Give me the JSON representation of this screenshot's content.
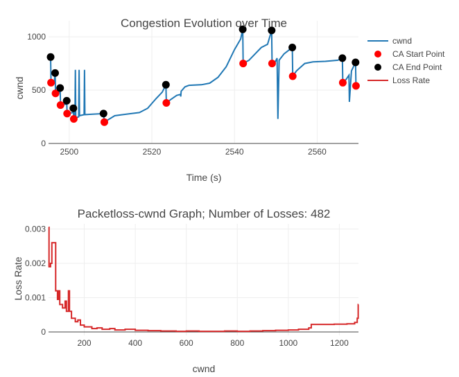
{
  "colors": {
    "cwnd": "#1f77b4",
    "ca_start": "#ff0000",
    "ca_end": "#000000",
    "loss": "#d62728"
  },
  "chart_data": [
    {
      "type": "line",
      "title": "Congestion Evolution over Time",
      "xlabel": "Time (s)",
      "ylabel": "cwnd",
      "xlim": [
        2495,
        2570
      ],
      "ylim": [
        0,
        1150
      ],
      "xticks": [
        2500,
        2520,
        2540,
        2560
      ],
      "yticks": [
        0,
        500,
        1000
      ],
      "legend_position": "top-right",
      "legend": [
        "cwnd",
        "CA Start Point",
        "CA End Point",
        "Loss Rate"
      ],
      "series": [
        {
          "name": "cwnd",
          "kind": "line",
          "points": [
            [
              2495.5,
              810
            ],
            [
              2495.6,
              570
            ],
            [
              2496.4,
              575
            ],
            [
              2496.6,
              660
            ],
            [
              2496.7,
              470
            ],
            [
              2497.7,
              480
            ],
            [
              2497.8,
              520
            ],
            [
              2497.9,
              360
            ],
            [
              2499.3,
              370
            ],
            [
              2499.4,
              400
            ],
            [
              2499.5,
              280
            ],
            [
              2500.9,
              290
            ],
            [
              2501.0,
              330
            ],
            [
              2501.1,
              230
            ],
            [
              2501.4,
              240
            ],
            [
              2501.5,
              690
            ],
            [
              2501.6,
              240
            ],
            [
              2502.3,
              250
            ],
            [
              2502.4,
              690
            ],
            [
              2502.5,
              260
            ],
            [
              2503.6,
              270
            ],
            [
              2503.7,
              690
            ],
            [
              2503.8,
              270
            ],
            [
              2508.3,
              280
            ],
            [
              2508.5,
              200
            ],
            [
              2511,
              260
            ],
            [
              2513,
              270
            ],
            [
              2515,
              280
            ],
            [
              2517,
              290
            ],
            [
              2519,
              330
            ],
            [
              2521,
              420
            ],
            [
              2522.5,
              480
            ],
            [
              2523.4,
              550
            ],
            [
              2523.5,
              380
            ],
            [
              2524.5,
              410
            ],
            [
              2526,
              450
            ],
            [
              2526.9,
              460
            ],
            [
              2527,
              440
            ],
            [
              2527.1,
              490
            ],
            [
              2528,
              530
            ],
            [
              2529,
              545
            ],
            [
              2532,
              550
            ],
            [
              2534,
              565
            ],
            [
              2536,
              620
            ],
            [
              2538,
              720
            ],
            [
              2540,
              880
            ],
            [
              2541.5,
              980
            ],
            [
              2542,
              1070
            ],
            [
              2542.1,
              750
            ],
            [
              2543.5,
              780
            ],
            [
              2545,
              840
            ],
            [
              2546.5,
              900
            ],
            [
              2548,
              930
            ],
            [
              2549,
              1060
            ],
            [
              2549.1,
              750
            ],
            [
              2549.8,
              760
            ],
            [
              2550.3,
              800
            ],
            [
              2550.5,
              230
            ],
            [
              2550.8,
              780
            ],
            [
              2552,
              840
            ],
            [
              2553,
              870
            ],
            [
              2554,
              900
            ],
            [
              2554.1,
              630
            ],
            [
              2555,
              680
            ],
            [
              2557,
              750
            ],
            [
              2559,
              765
            ],
            [
              2562,
              770
            ],
            [
              2565,
              780
            ],
            [
              2566.1,
              800
            ],
            [
              2566.2,
              570
            ],
            [
              2567,
              600
            ],
            [
              2567.7,
              640
            ],
            [
              2567.8,
              390
            ],
            [
              2568.3,
              680
            ],
            [
              2569.3,
              760
            ],
            [
              2569.4,
              540
            ],
            [
              2570,
              560
            ]
          ]
        },
        {
          "name": "CA Start Point",
          "kind": "markers",
          "points": [
            [
              2495.6,
              570
            ],
            [
              2496.7,
              470
            ],
            [
              2497.9,
              360
            ],
            [
              2499.5,
              280
            ],
            [
              2501.1,
              230
            ],
            [
              2508.5,
              200
            ],
            [
              2523.5,
              380
            ],
            [
              2542.1,
              750
            ],
            [
              2549.1,
              750
            ],
            [
              2554.1,
              630
            ],
            [
              2566.2,
              570
            ],
            [
              2569.4,
              540
            ]
          ]
        },
        {
          "name": "CA End Point",
          "kind": "markers",
          "points": [
            [
              2495.5,
              810
            ],
            [
              2496.6,
              660
            ],
            [
              2497.8,
              520
            ],
            [
              2499.4,
              400
            ],
            [
              2501.0,
              330
            ],
            [
              2508.3,
              280
            ],
            [
              2523.4,
              550
            ],
            [
              2542,
              1070
            ],
            [
              2549,
              1060
            ],
            [
              2554,
              900
            ],
            [
              2566.1,
              800
            ],
            [
              2569.3,
              760
            ]
          ]
        }
      ]
    },
    {
      "type": "line",
      "title": "Packetloss-cwnd Graph; Number of Losses: 482",
      "xlabel": "cwnd",
      "ylabel": "Loss Rate",
      "xlim": [
        60,
        1275
      ],
      "ylim": [
        -0.0001,
        0.00315
      ],
      "xticks": [
        200,
        400,
        600,
        800,
        1000,
        1200
      ],
      "yticks": [
        0,
        0.001,
        0.002,
        0.003
      ],
      "ytick_labels": [
        "0",
        "0.001",
        "0.002",
        "0.003"
      ],
      "series": [
        {
          "name": "Loss Rate",
          "kind": "step",
          "points": [
            [
              60,
              0.00305
            ],
            [
              62,
              0.0019
            ],
            [
              68,
              0.002
            ],
            [
              73,
              0.0026
            ],
            [
              88,
              0.0012
            ],
            [
              95,
              0.00095
            ],
            [
              100,
              0.0012
            ],
            [
              104,
              0.0008
            ],
            [
              115,
              0.0007
            ],
            [
              125,
              0.0009
            ],
            [
              130,
              0.0006
            ],
            [
              138,
              0.0012
            ],
            [
              142,
              0.0006
            ],
            [
              150,
              0.0004
            ],
            [
              165,
              0.0003
            ],
            [
              175,
              0.00035
            ],
            [
              185,
              0.0002
            ],
            [
              200,
              0.00015
            ],
            [
              230,
              0.0001
            ],
            [
              250,
              0.00012
            ],
            [
              270,
              8e-05
            ],
            [
              300,
              0.0001
            ],
            [
              320,
              6e-05
            ],
            [
              360,
              8e-05
            ],
            [
              400,
              5e-05
            ],
            [
              450,
              4e-05
            ],
            [
              500,
              3e-05
            ],
            [
              560,
              2e-05
            ],
            [
              600,
              3e-05
            ],
            [
              650,
              2e-05
            ],
            [
              700,
              2e-05
            ],
            [
              750,
              3e-05
            ],
            [
              800,
              2e-05
            ],
            [
              850,
              3e-05
            ],
            [
              900,
              4e-05
            ],
            [
              950,
              5e-05
            ],
            [
              1000,
              6e-05
            ],
            [
              1040,
              8e-05
            ],
            [
              1080,
              0.00012
            ],
            [
              1090,
              0.00022
            ],
            [
              1130,
              0.00022
            ],
            [
              1180,
              0.00023
            ],
            [
              1230,
              0.00024
            ],
            [
              1260,
              0.00028
            ],
            [
              1270,
              0.0004
            ],
            [
              1274,
              0.0008
            ]
          ]
        }
      ]
    }
  ]
}
